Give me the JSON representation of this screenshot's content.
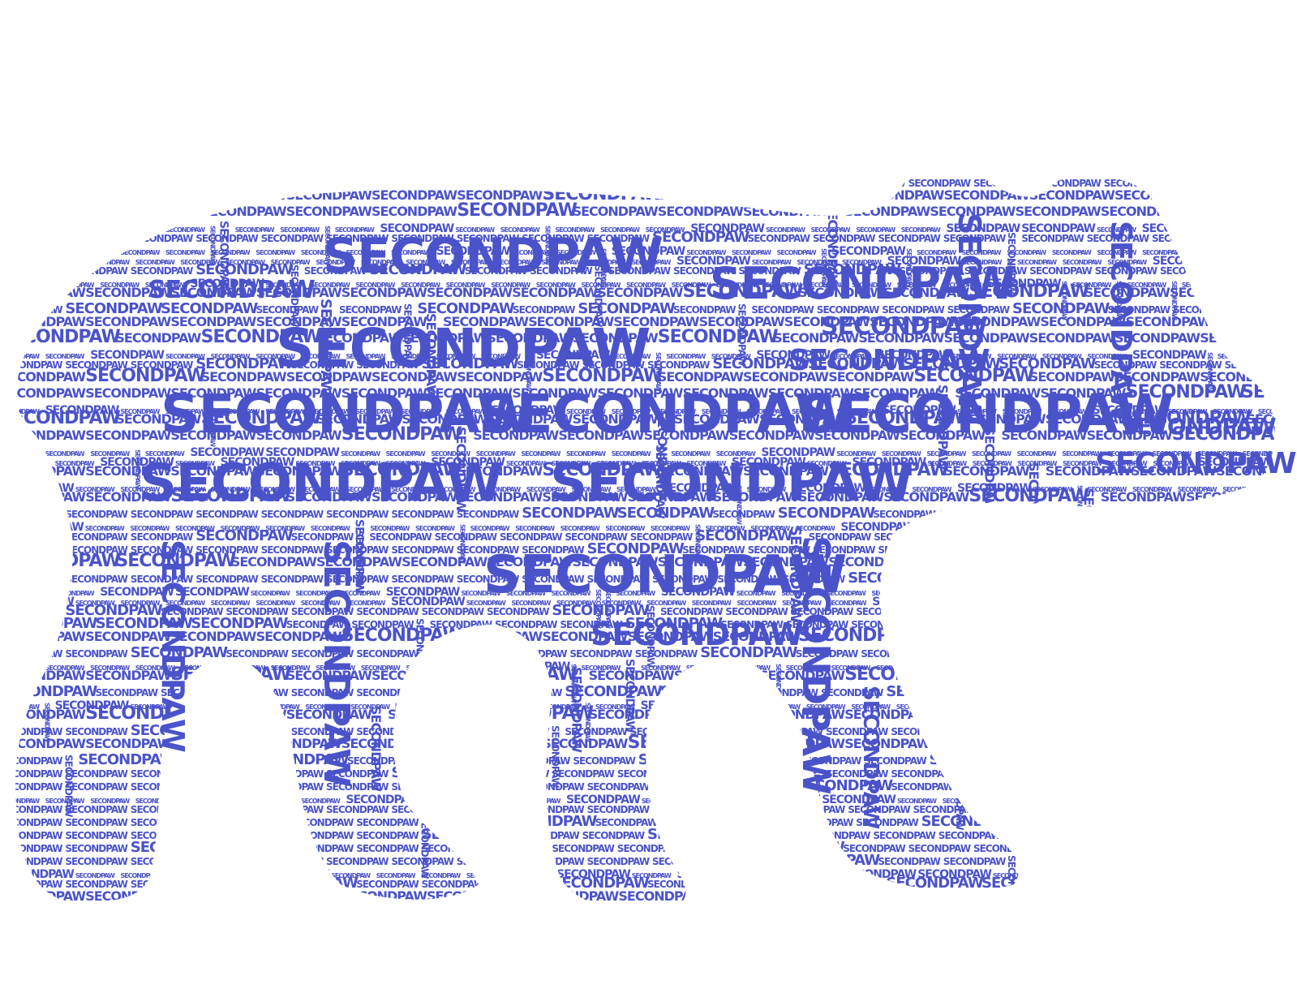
{
  "word": "SECONDPAW",
  "colors": {
    "background": "#ffffff",
    "text": "#4a53c9"
  },
  "description_shape": "word-cloud-animal-silhouette"
}
